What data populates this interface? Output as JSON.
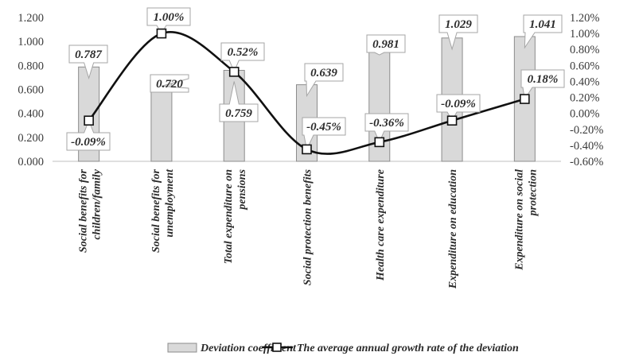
{
  "chart_data": {
    "type": "bar",
    "categories": [
      "Social benefits for children/family",
      "Social benefits for unemployment",
      "Total expenditure on pensions",
      "Social protection benefits",
      "Health care expenditure",
      "Expenditure on education",
      "Expenditure on social protection"
    ],
    "series": [
      {
        "name": "Deviation coefficient",
        "type": "bar",
        "axis": "left",
        "values": [
          0.787,
          0.72,
          0.759,
          0.639,
          0.981,
          1.029,
          1.041
        ],
        "labels": [
          "0.787",
          "0.720",
          "0.759",
          "0.639",
          "0.981",
          "1.029",
          "1.041"
        ]
      },
      {
        "name": "The average annual growth rate of the deviation",
        "type": "line",
        "axis": "right",
        "values": [
          -0.09,
          1.0,
          0.52,
          -0.45,
          -0.36,
          -0.09,
          0.18
        ],
        "labels": [
          "-0.09%",
          "1.00%",
          "0.52%",
          "-0.45%",
          "-0.36%",
          "-0.09%",
          "0.18%"
        ]
      }
    ],
    "y_left": {
      "ylim": [
        0,
        1.2
      ],
      "ticks": [
        "0.000",
        "0.200",
        "0.400",
        "0.600",
        "0.800",
        "1.000",
        "1.200"
      ]
    },
    "y_right": {
      "ylim": [
        -0.6,
        1.2
      ],
      "ticks": [
        "-0.60%",
        "-0.40%",
        "-0.20%",
        "0.00%",
        "0.20%",
        "0.40%",
        "0.60%",
        "0.80%",
        "1.00%",
        "1.20%"
      ]
    },
    "title": "",
    "xlabel": "",
    "grid": false,
    "legend_position": "bottom",
    "colors": {
      "bar_fill": "#d9d9d9",
      "bar_stroke": "#8c8c8c",
      "line": "#111111",
      "axis": "#bfbfbf"
    }
  }
}
